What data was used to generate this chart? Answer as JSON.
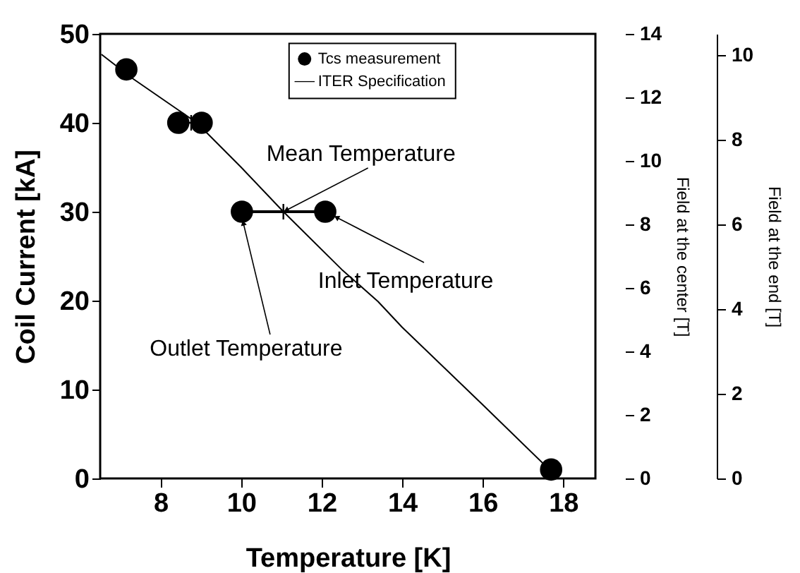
{
  "chart_data": {
    "type": "scatter",
    "xlabel": "Temperature [K]",
    "ylabel": "Coil Current [kA]",
    "y2label": "Field at the center  [T]",
    "y3label": "Field at the end [T]",
    "xlim": [
      6.5,
      18.8
    ],
    "xticks": [
      8,
      10,
      12,
      14,
      16,
      18
    ],
    "ylim": [
      0,
      50
    ],
    "yticks": [
      0,
      10,
      20,
      30,
      40,
      50
    ],
    "y2lim": [
      0,
      14
    ],
    "y2ticks": [
      0,
      2,
      4,
      6,
      8,
      10,
      12,
      14
    ],
    "y3lim": [
      0,
      10.5
    ],
    "y3ticks": [
      0,
      2,
      4,
      6,
      8,
      10
    ],
    "grid": false,
    "legend": "top right",
    "series": [
      {
        "name": "Tcs measurement",
        "type": "scatter",
        "marker": "circle",
        "color": "#000000",
        "x": [
          7.15,
          8.44,
          9.02,
          10.02,
          12.09,
          17.7
        ],
        "values": [
          46,
          40,
          40,
          30,
          30,
          1
        ]
      },
      {
        "name": "ITER Specification",
        "type": "line",
        "color": "#000000",
        "x": [
          6.53,
          7.3,
          8.9,
          10.0,
          11.05,
          12.5,
          13.4,
          14,
          16,
          17.7
        ],
        "values": [
          47.7,
          45,
          40,
          35,
          30,
          23.5,
          19.9,
          17,
          8.3,
          0.8
        ]
      },
      {
        "type": "line",
        "color": "#000000",
        "x": [
          10.02,
          12.09
        ],
        "values": [
          30,
          30
        ]
      },
      {
        "type": "scatter",
        "marker": "cross",
        "color": "#000000",
        "x": [
          8.76,
          11.05
        ],
        "values": [
          40,
          30
        ]
      }
    ],
    "annotations": [
      {
        "text": "Mean Temperature",
        "x": 11.05,
        "y": 30
      },
      {
        "text": "Inlet Temperature",
        "x": 12.09,
        "y": 30
      },
      {
        "text": "Outlet Temperature",
        "x": 10.02,
        "y": 30
      }
    ]
  }
}
